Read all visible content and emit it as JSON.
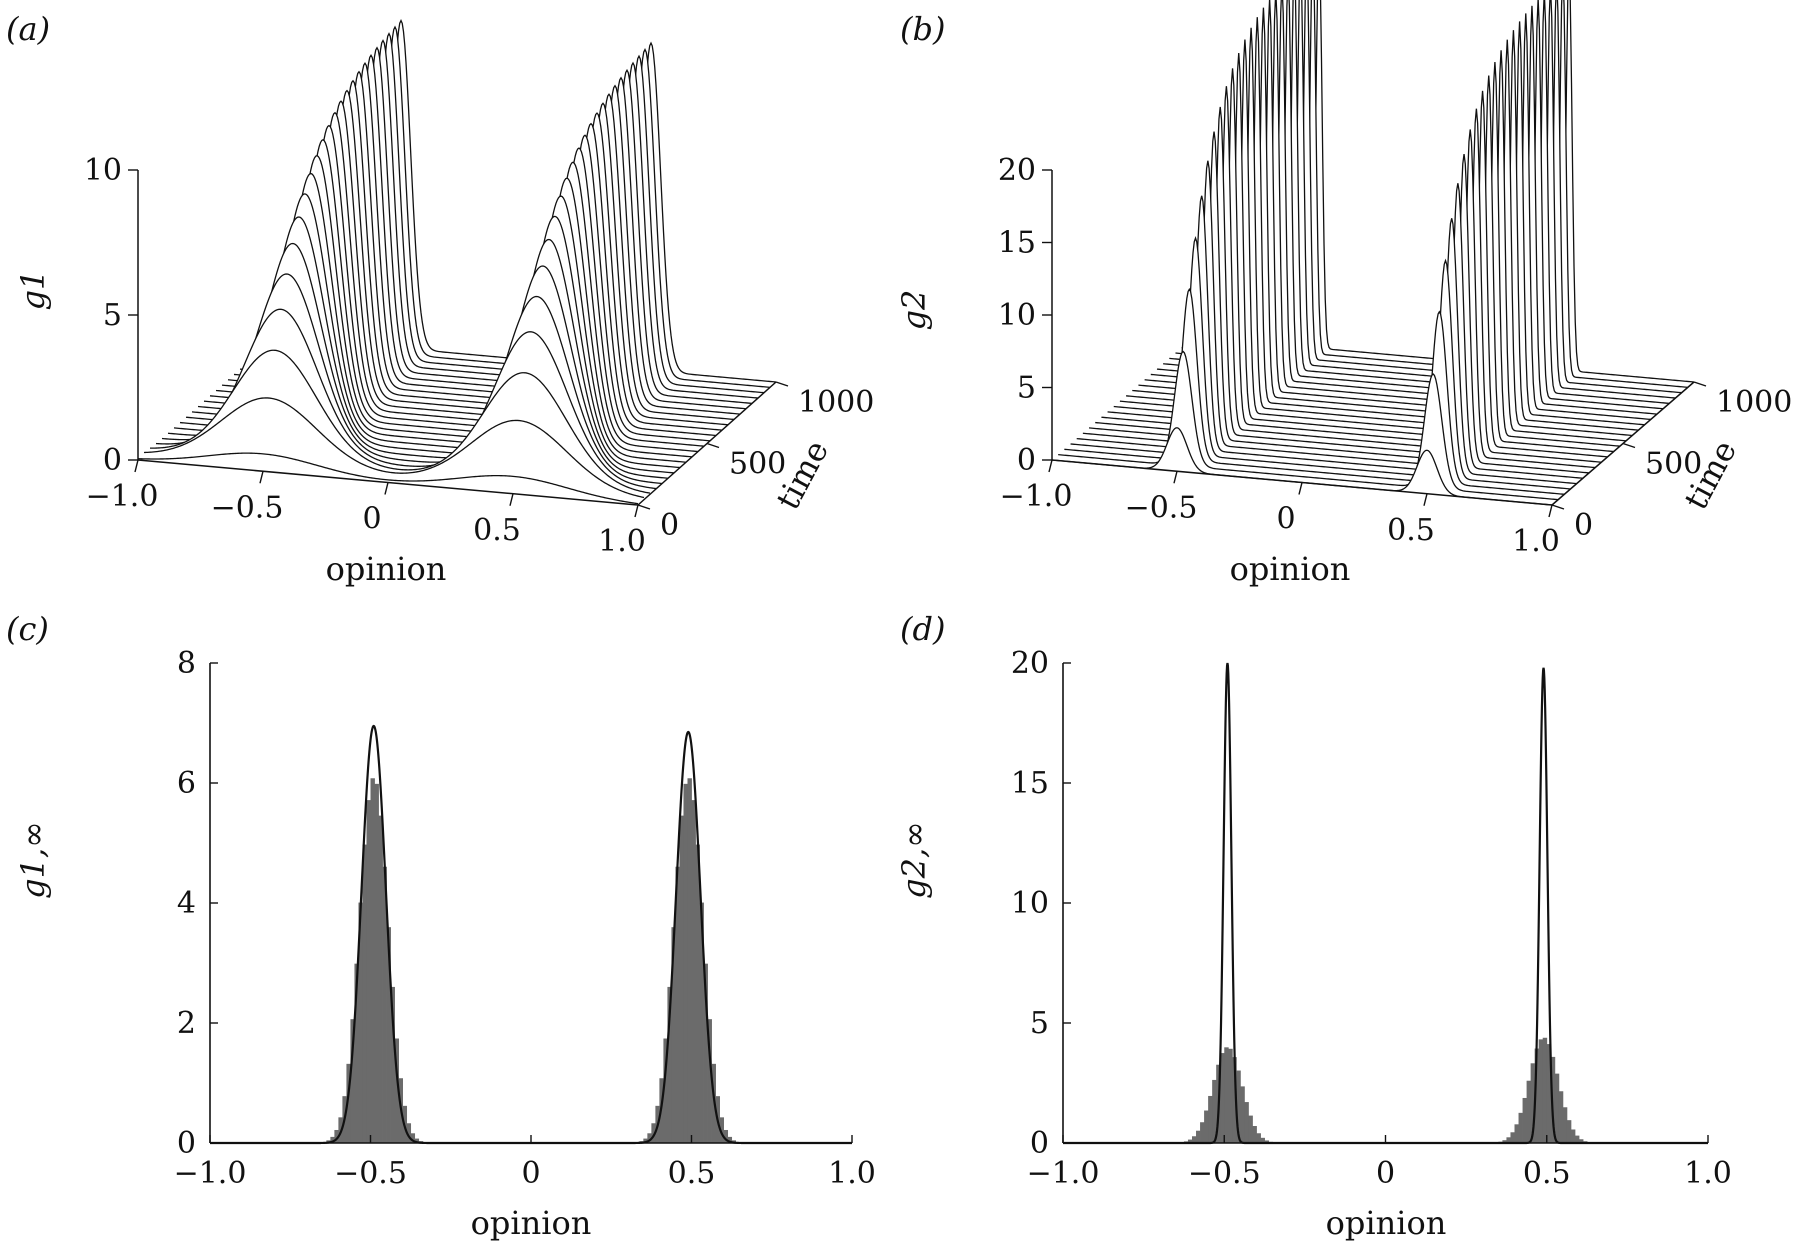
{
  "chart_data": [
    {
      "panel": "(a)",
      "type": "area",
      "view": "3d-waterfall",
      "xlabel": "opinion",
      "ylabel": "g1",
      "zlabel": "time",
      "x_ticks": [
        "−1.0",
        "−0.5",
        "0",
        "0.5",
        "1.0"
      ],
      "y_ticks": [
        "0",
        "5",
        "10"
      ],
      "time_ticks": [
        "0",
        "500",
        "1000"
      ],
      "xlim": [
        -1,
        1
      ],
      "ylim": [
        0,
        10
      ],
      "time_range": [
        0,
        1000
      ],
      "series": [
        {
          "peak_positions": [
            -0.5,
            0.5
          ],
          "final_peak_height": 11.5,
          "initial_peak_height": 0.6
        }
      ]
    },
    {
      "panel": "(b)",
      "type": "area",
      "view": "3d-waterfall",
      "xlabel": "opinion",
      "ylabel": "g2",
      "zlabel": "time",
      "x_ticks": [
        "−1.0",
        "−0.5",
        "0",
        "0.5",
        "1.0"
      ],
      "y_ticks": [
        "0",
        "5",
        "10",
        "15",
        "20"
      ],
      "time_ticks": [
        "0",
        "500",
        "1000"
      ],
      "xlim": [
        -1,
        1
      ],
      "ylim": [
        0,
        20
      ],
      "time_range": [
        0,
        1000
      ],
      "series": [
        {
          "peak_positions": [
            -0.5,
            0.5
          ],
          "final_peak_height": 28,
          "initial_peak_height": 3
        }
      ]
    },
    {
      "panel": "(c)",
      "type": "bar",
      "xlabel": "opinion",
      "ylabel": "g1,∞",
      "x_ticks": [
        "−1.0",
        "−0.5",
        "0",
        "0.5",
        "1.0"
      ],
      "y_ticks": [
        "0",
        "2",
        "4",
        "6",
        "8"
      ],
      "xlim": [
        -1,
        1
      ],
      "ylim": [
        0,
        8
      ],
      "series": [
        {
          "kind": "histogram",
          "peaks": [
            {
              "center": -0.49,
              "height": 6.1,
              "sigma": 0.045
            },
            {
              "center": 0.49,
              "height": 6.1,
              "sigma": 0.045
            }
          ]
        },
        {
          "kind": "line",
          "peaks": [
            {
              "center": -0.49,
              "height": 6.95,
              "sigma": 0.038
            },
            {
              "center": 0.49,
              "height": 6.85,
              "sigma": 0.038
            }
          ]
        }
      ]
    },
    {
      "panel": "(d)",
      "type": "bar",
      "xlabel": "opinion",
      "ylabel": "g2,∞",
      "x_ticks": [
        "−1.0",
        "−0.5",
        "0",
        "0.5",
        "1.0"
      ],
      "y_ticks": [
        "0",
        "5",
        "10",
        "15",
        "20"
      ],
      "xlim": [
        -1,
        1
      ],
      "ylim": [
        0,
        20
      ],
      "series": [
        {
          "kind": "histogram",
          "peaks": [
            {
              "center": -0.49,
              "height": 4.0,
              "sigma": 0.045
            },
            {
              "center": 0.49,
              "height": 4.4,
              "sigma": 0.045
            }
          ]
        },
        {
          "kind": "line",
          "peaks": [
            {
              "center": -0.49,
              "height": 20.0,
              "sigma": 0.012
            },
            {
              "center": 0.49,
              "height": 19.8,
              "sigma": 0.012
            }
          ]
        }
      ]
    }
  ]
}
